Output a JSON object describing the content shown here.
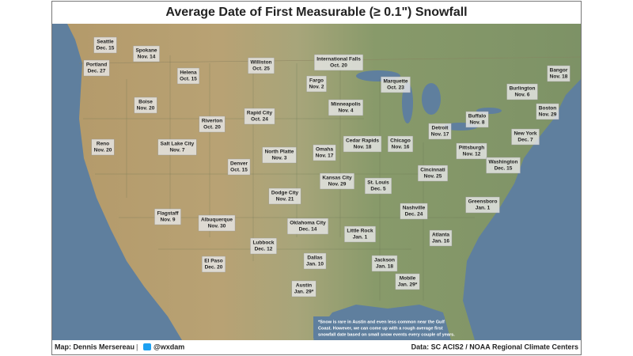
{
  "header": {
    "title": "Average Date of First Measurable (≥ 0.1\") Snowfall"
  },
  "cities": [
    {
      "name": "Seattle",
      "date": "Dec. 15"
    },
    {
      "name": "Spokane",
      "date": "Nov. 14"
    },
    {
      "name": "Portland",
      "date": "Dec. 27"
    },
    {
      "name": "Helena",
      "date": "Oct. 15"
    },
    {
      "name": "Williston",
      "date": "Oct. 25"
    },
    {
      "name": "International Falls",
      "date": "Oct. 20"
    },
    {
      "name": "Fargo",
      "date": "Nov. 2"
    },
    {
      "name": "Marquette",
      "date": "Oct. 23"
    },
    {
      "name": "Bangor",
      "date": "Nov. 18"
    },
    {
      "name": "Burlington",
      "date": "Nov. 6"
    },
    {
      "name": "Boise",
      "date": "Nov. 20"
    },
    {
      "name": "Rapid City",
      "date": "Oct. 24"
    },
    {
      "name": "Minneapolis",
      "date": "Nov. 4"
    },
    {
      "name": "Boston",
      "date": "Nov. 29"
    },
    {
      "name": "Buffalo",
      "date": "Nov. 8"
    },
    {
      "name": "Riverton",
      "date": "Oct. 20"
    },
    {
      "name": "Detroit",
      "date": "Nov. 17"
    },
    {
      "name": "Reno",
      "date": "Nov. 20"
    },
    {
      "name": "Salt Lake City",
      "date": "Nov. 7"
    },
    {
      "name": "North Platte",
      "date": "Nov. 3"
    },
    {
      "name": "Omaha",
      "date": "Nov. 17"
    },
    {
      "name": "Cedar Rapids",
      "date": "Nov. 18"
    },
    {
      "name": "Chicago",
      "date": "Nov. 16"
    },
    {
      "name": "Pittsburgh",
      "date": "Nov. 12"
    },
    {
      "name": "New York",
      "date": "Dec. 7"
    },
    {
      "name": "Denver",
      "date": "Oct. 15"
    },
    {
      "name": "Washington",
      "date": "Dec. 15"
    },
    {
      "name": "Kansas City",
      "date": "Nov. 29"
    },
    {
      "name": "St. Louis",
      "date": "Dec. 5"
    },
    {
      "name": "Cincinnati",
      "date": "Nov. 25"
    },
    {
      "name": "Dodge City",
      "date": "Nov. 21"
    },
    {
      "name": "Greensboro",
      "date": "Jan. 1"
    },
    {
      "name": "Flagstaff",
      "date": "Nov. 9"
    },
    {
      "name": "Albuquerque",
      "date": "Nov. 30"
    },
    {
      "name": "Oklahoma City",
      "date": "Dec. 14"
    },
    {
      "name": "Nashville",
      "date": "Dec. 24"
    },
    {
      "name": "Little Rock",
      "date": "Jan. 1"
    },
    {
      "name": "Atlanta",
      "date": "Jan. 16"
    },
    {
      "name": "Lubbock",
      "date": "Dec. 12"
    },
    {
      "name": "Dallas",
      "date": "Jan. 10"
    },
    {
      "name": "El Paso",
      "date": "Dec. 20"
    },
    {
      "name": "Jackson",
      "date": "Jan. 18"
    },
    {
      "name": "Mobile",
      "date": "Jan. 29*"
    },
    {
      "name": "Austin",
      "date": "Jan. 29*"
    }
  ],
  "footnote": [
    "*Snow is rare in Austin and even less common near the Gulf",
    "Coast. However, we can come up with a rough average first",
    "snowfall date based on small snow events every couple of years."
  ],
  "footer": {
    "credit": "Map: Dennis Mersereau",
    "separator": "|",
    "handle": "@wxdam",
    "source": "Data: SC ACIS2 / NOAA Regional Climate Centers"
  }
}
